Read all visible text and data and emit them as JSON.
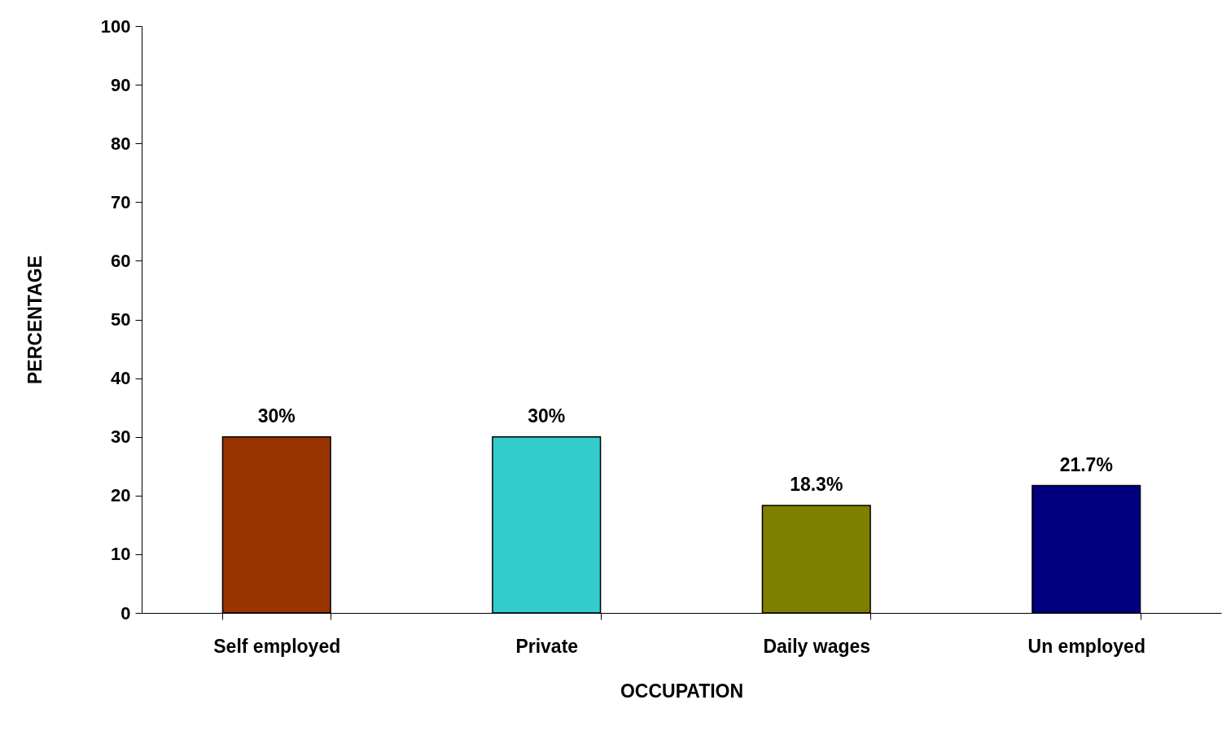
{
  "chart_data": {
    "type": "bar",
    "xlabel": "OCCUPATION",
    "ylabel": "PERCENTAGE",
    "categories": [
      "Self employed",
      "Private",
      "Daily wages",
      "Un employed"
    ],
    "values": [
      30,
      30,
      18.3,
      21.7
    ],
    "colors": [
      "#993300",
      "#33cccc",
      "#808000",
      "#000080"
    ],
    "value_labels": [
      "30%",
      "30%",
      "18.3%",
      "21.7%"
    ],
    "ylim": [
      0,
      100
    ],
    "yticks": [
      0,
      10,
      20,
      30,
      40,
      50,
      60,
      70,
      80,
      90,
      100
    ]
  }
}
